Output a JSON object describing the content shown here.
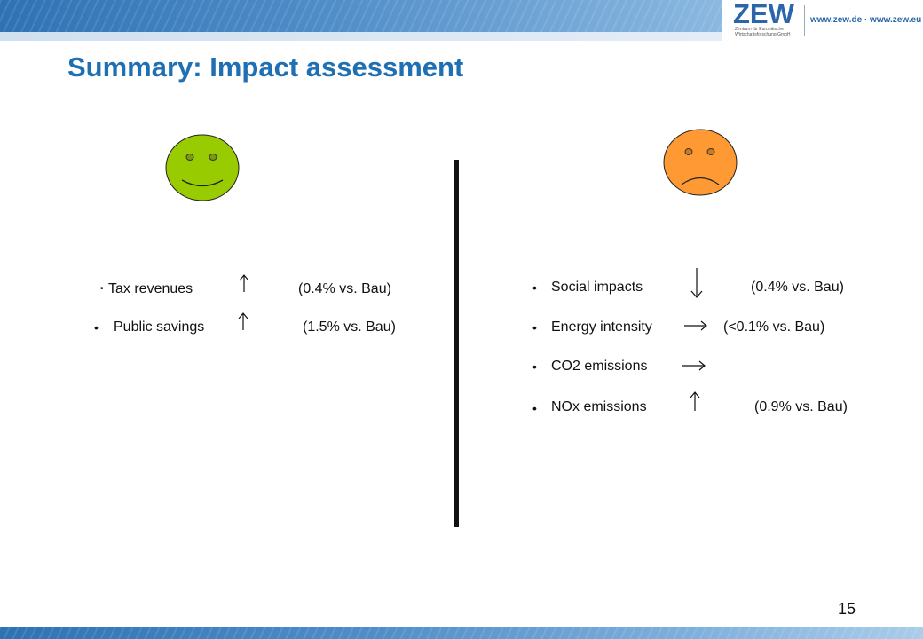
{
  "header": {
    "logo_text": "ZEW",
    "logo_subtitle": "Zentrum für Europäische Wirtschaftsforschung GmbH",
    "website": "www.zew.de · www.zew.eu"
  },
  "title": "Summary: Impact assessment",
  "colors": {
    "title": "#1f6fb3",
    "happy_face": "#99cc00",
    "sad_face": "#ff9933",
    "banner": "#2f72b4"
  },
  "positive": {
    "icon": "happy-face-icon",
    "items": [
      {
        "label": "Tax revenues",
        "arrow": "up-arrow-icon",
        "value": "(0.4% vs. Bau)"
      },
      {
        "label": "Public savings",
        "arrow": "up-arrow-icon",
        "value": "(1.5% vs. Bau)"
      }
    ]
  },
  "negative": {
    "icon": "sad-face-icon",
    "items": [
      {
        "label": "Social  impacts",
        "arrow": "down-arrow-icon",
        "value": "(0.4% vs. Bau)"
      },
      {
        "label": "Energy intensity",
        "arrow": "right-arrow-icon",
        "value": "(<0.1% vs. Bau)"
      },
      {
        "label": "CO2 emissions",
        "arrow": "right-arrow-icon",
        "value": ""
      },
      {
        "label": "NOx  emissions",
        "arrow": "up-arrow-icon",
        "value": "(0.9% vs. Bau)"
      }
    ]
  },
  "footer": {
    "page_number": "15"
  }
}
